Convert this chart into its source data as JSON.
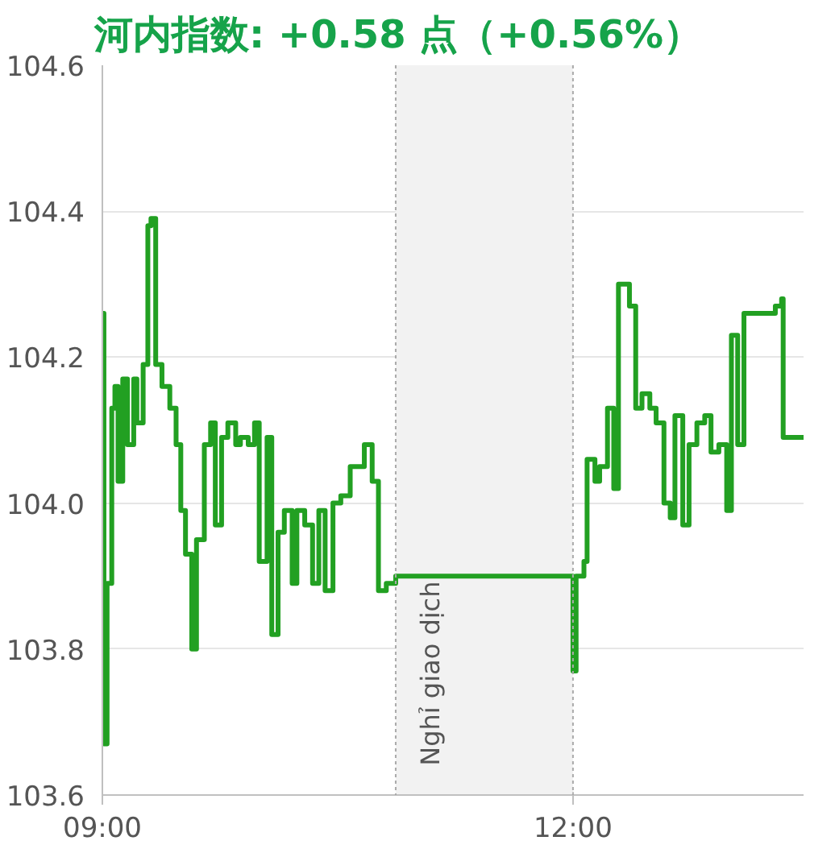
{
  "chart_data": {
    "type": "step",
    "title": "河内指数: +0.58 点（+0.56%）",
    "x": [
      9.0,
      9.01,
      9.03,
      9.06,
      9.08,
      9.1,
      9.13,
      9.16,
      9.2,
      9.22,
      9.26,
      9.29,
      9.31,
      9.34,
      9.38,
      9.43,
      9.47,
      9.5,
      9.53,
      9.57,
      9.6,
      9.65,
      9.69,
      9.72,
      9.76,
      9.8,
      9.85,
      9.88,
      9.93,
      9.97,
      10.0,
      10.05,
      10.08,
      10.12,
      10.16,
      10.21,
      10.24,
      10.29,
      10.34,
      10.38,
      10.42,
      10.47,
      10.52,
      10.58,
      10.63,
      10.67,
      10.72,
      10.76,
      10.81,
      10.87,
      11.98,
      12.0,
      12.02,
      12.07,
      12.09,
      12.14,
      12.17,
      12.22,
      12.26,
      12.29,
      12.33,
      12.36,
      12.4,
      12.44,
      12.49,
      12.53,
      12.58,
      12.62,
      12.65,
      12.7,
      12.74,
      12.79,
      12.84,
      12.88,
      12.93,
      12.98,
      13.01,
      13.05,
      13.09,
      13.2,
      13.29,
      13.33,
      13.34,
      13.47
    ],
    "series": [
      {
        "color": "#22a022",
        "values": [
          104.26,
          103.67,
          103.89,
          104.13,
          104.16,
          104.03,
          104.17,
          104.08,
          104.17,
          104.11,
          104.19,
          104.38,
          104.39,
          104.19,
          104.16,
          104.13,
          104.08,
          103.99,
          103.93,
          103.8,
          103.95,
          104.08,
          104.11,
          103.97,
          104.09,
          104.11,
          104.08,
          104.09,
          104.08,
          104.11,
          103.92,
          104.09,
          103.82,
          103.96,
          103.99,
          103.89,
          103.99,
          103.97,
          103.89,
          103.99,
          103.88,
          104.0,
          104.01,
          104.05,
          104.05,
          104.08,
          104.03,
          103.88,
          103.89,
          103.9,
          103.9,
          103.77,
          103.9,
          103.92,
          104.06,
          104.03,
          104.05,
          104.13,
          104.02,
          104.3,
          104.3,
          104.27,
          104.13,
          104.15,
          104.13,
          104.11,
          104.0,
          103.98,
          104.12,
          103.97,
          104.08,
          104.11,
          104.12,
          104.07,
          104.08,
          103.99,
          104.23,
          104.08,
          104.26,
          104.26,
          104.27,
          104.28,
          104.09,
          104.09
        ]
      }
    ],
    "xlim": [
      9,
      13.47
    ],
    "xticks": [
      {
        "value": 9,
        "label": "09:00"
      },
      {
        "value": 12,
        "label": "12:00"
      }
    ],
    "ylim": [
      103.6,
      104.6
    ],
    "yticks": [
      {
        "value": 103.6,
        "label": "103.6"
      },
      {
        "value": 103.8,
        "label": "103.8"
      },
      {
        "value": 104.0,
        "label": "104.0"
      },
      {
        "value": 104.2,
        "label": "104.2"
      },
      {
        "value": 104.4,
        "label": "104.4"
      },
      {
        "value": 104.6,
        "label": "104.6"
      }
    ],
    "bands": [
      {
        "axis": "x",
        "from": 10.87,
        "to": 12.0,
        "label": "Nghỉ giao dịch",
        "color": "#f2f2f2"
      }
    ],
    "ref_lines": [
      {
        "axis": "x",
        "value": 10.87,
        "color": "#aaaaaa",
        "line_style": "dotted"
      },
      {
        "axis": "x",
        "value": 12.0,
        "color": "#aaaaaa",
        "line_style": "dotted"
      }
    ],
    "grid": "y",
    "marker": "none",
    "line_style": "solid"
  }
}
